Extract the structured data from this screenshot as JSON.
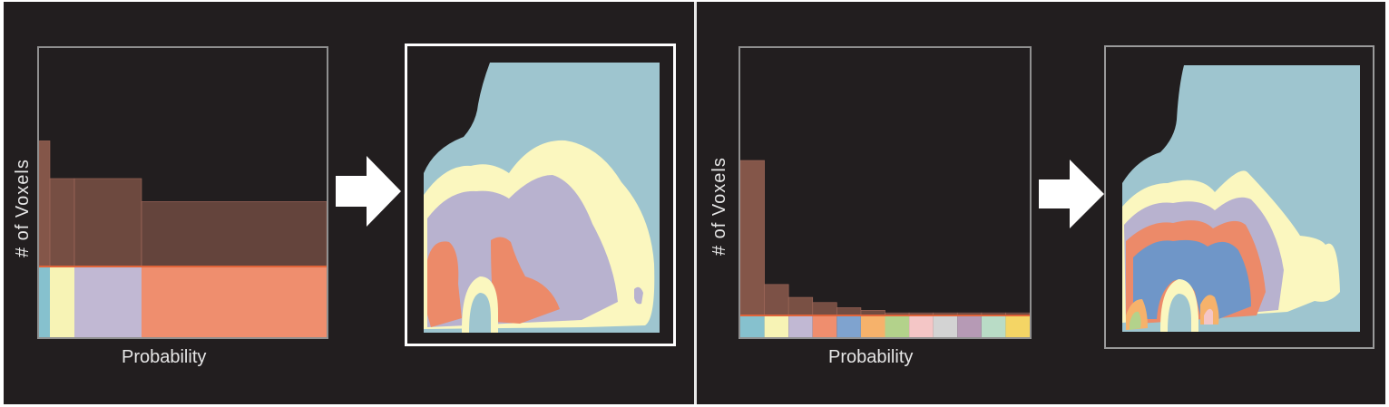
{
  "left_panel": {
    "ylabel": "# of Voxels",
    "xlabel": "Probability",
    "bins": [
      {
        "color": "#86c1ce",
        "count_level": 0.6
      },
      {
        "color": "#f7f3b5",
        "count_level": 0.42
      },
      {
        "color": "#c1b8d3",
        "count_level": 0.42
      },
      {
        "color": "#ef8e6e",
        "count_level": 0.31
      }
    ]
  },
  "right_panel": {
    "ylabel": "# of Voxels",
    "xlabel": "Probability",
    "bins": [
      {
        "color": "#86c1ce",
        "count_level": 0.6
      },
      {
        "color": "#f7f3b5",
        "count_level": 0.12
      },
      {
        "color": "#c1b8d3",
        "count_level": 0.07
      },
      {
        "color": "#ef8e6e",
        "count_level": 0.05
      },
      {
        "color": "#7fa3cf",
        "count_level": 0.03
      },
      {
        "color": "#f6b26b",
        "count_level": 0.02
      },
      {
        "color": "#b3d28b",
        "count_level": 0.01
      },
      {
        "color": "#f4c6c6",
        "count_level": 0.01
      },
      {
        "color": "#d3d3d3",
        "count_level": 0.01
      },
      {
        "color": "#b69ab5",
        "count_level": 0.01
      },
      {
        "color": "#b9dcc6",
        "count_level": 0.01
      },
      {
        "color": "#f4d565",
        "count_level": 0.01
      }
    ]
  },
  "colors": {
    "background": "#221e1f",
    "histogram_bar": "#8a5a4c",
    "divider": "#e8e8e8",
    "arrow": "#ffffff",
    "map_blue": "#9ec5cf",
    "map_yellow": "#fbf7bf",
    "map_purple": "#b8b2cf",
    "map_orange": "#ec8a69",
    "map_dark_blue": "#6f96c8"
  }
}
